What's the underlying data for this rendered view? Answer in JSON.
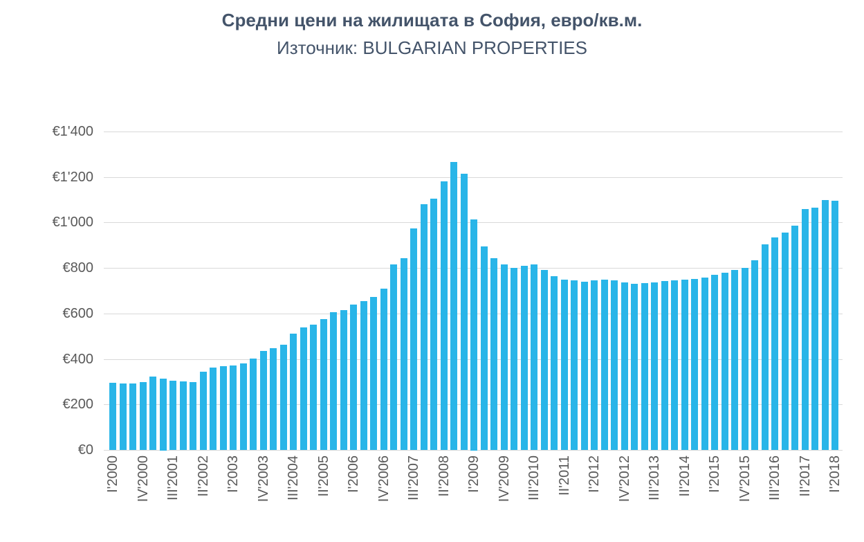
{
  "chart_data": {
    "type": "bar",
    "title": "Средни цени на жилищата в София, евро/кв.м.",
    "subtitle": "Източник: BULGARIAN PROPERTIES",
    "xlabel": "",
    "ylabel": "",
    "ylim": [
      0,
      1400
    ],
    "ytick_step": 200,
    "ytick_labels": [
      "€0",
      "€200",
      "€400",
      "€600",
      "€800",
      "€1'000",
      "€1'200",
      "€1'400"
    ],
    "x_label_every": 3,
    "grid": "horizontal",
    "legend": "none",
    "bar_color": "#29B5E8",
    "gridline_color": "#D9D9D9",
    "title_color": "#44546A",
    "axis_label_color": "#595959",
    "categories": [
      "I'2000",
      "II'2000",
      "III'2000",
      "IV'2000",
      "I'2001",
      "II'2001",
      "III'2001",
      "IV'2001",
      "I'2002",
      "II'2002",
      "III'2002",
      "IV'2002",
      "I'2003",
      "II'2003",
      "III'2003",
      "IV'2003",
      "I'2004",
      "II'2004",
      "III'2004",
      "IV'2004",
      "I'2005",
      "II'2005",
      "III'2005",
      "IV'2005",
      "I'2006",
      "II'2006",
      "III'2006",
      "IV'2006",
      "I'2007",
      "II'2007",
      "III'2007",
      "IV'2007",
      "I'2008",
      "II'2008",
      "III'2008",
      "IV'2008",
      "I'2009",
      "II'2009",
      "III'2009",
      "IV'2009",
      "I'2010",
      "II'2010",
      "III'2010",
      "IV'2010",
      "I'2011",
      "II'2011",
      "III'2011",
      "IV'2011",
      "I'2012",
      "II'2012",
      "III'2012",
      "IV'2012",
      "I'2013",
      "II'2013",
      "III'2013",
      "IV'2013",
      "I'2014",
      "II'2014",
      "III'2014",
      "IV'2014",
      "I'2015",
      "II'2015",
      "III'2015",
      "IV'2015",
      "I'2016",
      "II'2016",
      "III'2016",
      "IV'2016",
      "I'2017",
      "II'2017",
      "III'2017",
      "IV'2017",
      "I'2018"
    ],
    "values": [
      295,
      292,
      291,
      297,
      322,
      315,
      305,
      300,
      297,
      345,
      362,
      368,
      372,
      380,
      402,
      435,
      448,
      462,
      510,
      540,
      552,
      575,
      605,
      615,
      640,
      655,
      672,
      710,
      815,
      842,
      975,
      1080,
      1105,
      1180,
      1265,
      1215,
      1015,
      895,
      842,
      815,
      800,
      810,
      815,
      790,
      765,
      750,
      745,
      740,
      745,
      750,
      745,
      738,
      730,
      734,
      738,
      742,
      745,
      748,
      752,
      758,
      770,
      780,
      790,
      800,
      835,
      905,
      935,
      955,
      985,
      1060,
      1065,
      1100,
      1095
    ]
  }
}
